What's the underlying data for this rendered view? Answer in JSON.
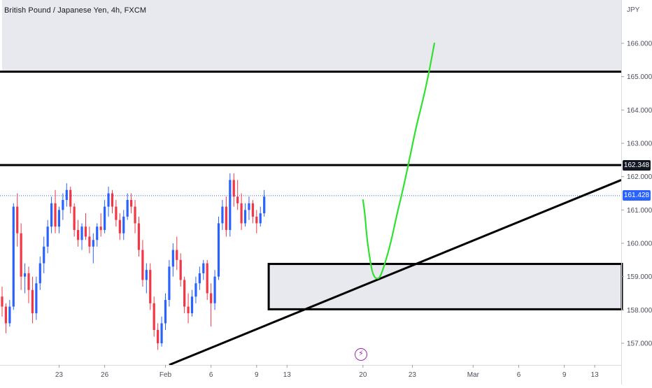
{
  "header": {
    "title": "British Pound / Japanese Yen, 4h, FXCM"
  },
  "axis": {
    "currency": "JPY"
  },
  "event": {
    "icon": "lightning-icon",
    "symbol": "⚡"
  },
  "colors": {
    "up": "#2962ff",
    "down": "#f23645",
    "projection": "#2ee22e",
    "level": "#000000",
    "zone": "#e8e9ef",
    "last_price": "#2962ff"
  },
  "chart_data": {
    "type": "candlestick",
    "title": "British Pound / Japanese Yen, 4h, FXCM",
    "ylabel": "JPY",
    "ylim": [
      156.35,
      167.3
    ],
    "y_ticks": [
      "157.000",
      "158.000",
      "159.000",
      "160.000",
      "161.000",
      "162.000",
      "163.000",
      "164.000",
      "165.000",
      "166.000"
    ],
    "x_ticks": [
      {
        "label": "23",
        "bar": 15
      },
      {
        "label": "26",
        "bar": 27
      },
      {
        "label": "Feb",
        "bar": 43
      },
      {
        "label": "6",
        "bar": 55
      },
      {
        "label": "9",
        "bar": 67
      },
      {
        "label": "13",
        "bar": 75
      },
      {
        "label": "20",
        "bar": 95
      },
      {
        "label": "23",
        "bar": 108
      },
      {
        "label": "Mar",
        "bar": 124
      },
      {
        "label": "6",
        "bar": 136
      },
      {
        "label": "9",
        "bar": 148
      },
      {
        "label": "13",
        "bar": 156
      }
    ],
    "last_price": {
      "value": 161.428,
      "label": "161.428"
    },
    "resistance": {
      "value": 162.348,
      "label": "162.348"
    },
    "upper_level": 165.15,
    "zones": [
      {
        "from": 165.15,
        "to": 167.3,
        "bar_start": 0,
        "bar_end": 163
      },
      {
        "from": 158.02,
        "to": 159.38,
        "bar_start": 70,
        "bar_end": 163
      }
    ],
    "trendline": {
      "start": {
        "bar": 44,
        "price": 156.35
      },
      "end": {
        "bar": 163,
        "price": 161.9
      }
    },
    "projection": [
      [
        95,
        161.3
      ],
      [
        95.5,
        160.9
      ],
      [
        96,
        160.2
      ],
      [
        96.6,
        159.7
      ],
      [
        97.3,
        159.2
      ],
      [
        98,
        158.98
      ],
      [
        98.8,
        158.93
      ],
      [
        99.6,
        159.0
      ],
      [
        100.8,
        159.4
      ],
      [
        102.3,
        160.0
      ],
      [
        104,
        160.9
      ],
      [
        105.5,
        161.6
      ],
      [
        107.2,
        162.5
      ],
      [
        109,
        163.5
      ],
      [
        110.8,
        164.3
      ],
      [
        112.5,
        165.2
      ],
      [
        113.8,
        166.0
      ]
    ],
    "series": [
      {
        "name": "",
        "ohlc": [
          [
            158.4,
            158.7,
            157.8,
            158.1
          ],
          [
            158.1,
            158.2,
            157.3,
            157.6
          ],
          [
            157.6,
            158.3,
            157.5,
            158.1
          ],
          [
            158.1,
            161.2,
            158.0,
            161.1
          ],
          [
            161.1,
            161.5,
            159.9,
            160.3
          ],
          [
            160.3,
            160.6,
            158.6,
            159.0
          ],
          [
            159.0,
            159.4,
            158.5,
            159.1
          ],
          [
            159.1,
            159.3,
            158.2,
            158.6
          ],
          [
            158.6,
            159.0,
            157.6,
            157.9
          ],
          [
            157.9,
            159.0,
            157.7,
            158.8
          ],
          [
            158.8,
            159.6,
            158.6,
            159.4
          ],
          [
            159.4,
            160.2,
            159.1,
            159.9
          ],
          [
            159.9,
            160.7,
            159.7,
            160.5
          ],
          [
            160.5,
            161.4,
            160.3,
            161.2
          ],
          [
            161.2,
            161.6,
            160.3,
            160.5
          ],
          [
            160.5,
            161.1,
            160.3,
            161.0
          ],
          [
            161.0,
            161.5,
            160.7,
            161.3
          ],
          [
            161.3,
            161.8,
            161.1,
            161.6
          ],
          [
            161.6,
            161.7,
            160.9,
            161.1
          ],
          [
            161.1,
            161.2,
            160.2,
            160.4
          ],
          [
            160.4,
            160.7,
            159.9,
            160.1
          ],
          [
            160.1,
            160.6,
            159.8,
            160.5
          ],
          [
            160.5,
            160.9,
            160.1,
            160.2
          ],
          [
            160.2,
            160.5,
            159.7,
            159.9
          ],
          [
            159.9,
            160.3,
            159.4,
            160.1
          ],
          [
            160.1,
            160.6,
            159.9,
            160.5
          ],
          [
            160.5,
            160.9,
            160.2,
            160.4
          ],
          [
            160.4,
            161.3,
            160.3,
            161.1
          ],
          [
            161.1,
            161.7,
            160.8,
            161.5
          ],
          [
            161.5,
            161.6,
            160.9,
            161.1
          ],
          [
            161.1,
            161.3,
            160.5,
            160.7
          ],
          [
            160.7,
            160.9,
            160.1,
            160.3
          ],
          [
            160.3,
            161.0,
            160.1,
            160.8
          ],
          [
            160.8,
            161.5,
            160.7,
            161.3
          ],
          [
            161.3,
            161.5,
            160.9,
            161.1
          ],
          [
            161.1,
            161.3,
            160.3,
            160.6
          ],
          [
            160.6,
            160.8,
            159.6,
            159.8
          ],
          [
            159.8,
            160.1,
            158.7,
            158.9
          ],
          [
            158.9,
            159.4,
            158.5,
            159.2
          ],
          [
            159.2,
            159.4,
            158.0,
            158.2
          ],
          [
            158.2,
            158.4,
            157.2,
            157.4
          ],
          [
            157.4,
            157.6,
            156.8,
            157.0
          ],
          [
            157.0,
            157.8,
            156.9,
            157.6
          ],
          [
            157.6,
            158.5,
            157.4,
            158.3
          ],
          [
            158.3,
            159.5,
            158.1,
            159.3
          ],
          [
            159.3,
            160.0,
            159.0,
            159.8
          ],
          [
            159.8,
            160.2,
            159.2,
            159.5
          ],
          [
            159.5,
            159.7,
            158.7,
            158.9
          ],
          [
            158.9,
            159.0,
            157.9,
            158.1
          ],
          [
            158.1,
            158.5,
            157.6,
            157.9
          ],
          [
            157.9,
            158.6,
            157.8,
            158.4
          ],
          [
            158.4,
            159.0,
            158.2,
            158.8
          ],
          [
            158.8,
            159.3,
            158.6,
            159.1
          ],
          [
            159.1,
            159.5,
            158.9,
            159.4
          ],
          [
            159.4,
            159.5,
            158.3,
            158.5
          ],
          [
            158.5,
            158.8,
            157.5,
            158.2
          ],
          [
            158.2,
            159.2,
            158.0,
            159.0
          ],
          [
            159.0,
            160.8,
            158.9,
            160.6
          ],
          [
            160.6,
            161.3,
            160.4,
            161.1
          ],
          [
            161.1,
            161.4,
            160.2,
            160.4
          ],
          [
            160.4,
            162.1,
            160.2,
            161.9
          ],
          [
            161.9,
            162.1,
            161.1,
            161.4
          ],
          [
            161.4,
            161.9,
            161.0,
            161.2
          ],
          [
            161.2,
            161.5,
            160.4,
            160.6
          ],
          [
            160.6,
            161.2,
            160.5,
            161.0
          ],
          [
            161.0,
            161.4,
            160.7,
            161.2
          ],
          [
            161.2,
            161.3,
            160.6,
            160.8
          ],
          [
            160.8,
            161.0,
            160.3,
            160.6
          ],
          [
            160.6,
            161.1,
            160.5,
            160.9
          ],
          [
            160.9,
            161.6,
            160.8,
            161.4
          ]
        ]
      }
    ]
  }
}
